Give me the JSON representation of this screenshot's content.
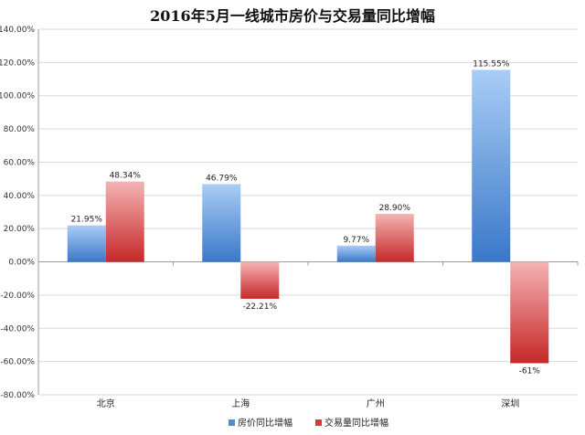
{
  "chart_data": {
    "type": "bar",
    "title": "2016年5月一线城市房价与交易量同比增幅",
    "categories": [
      "北京",
      "上海",
      "广州",
      "深圳"
    ],
    "series": [
      {
        "name": "房价同比增幅",
        "values": [
          21.95,
          46.79,
          9.77,
          115.55
        ],
        "labels": [
          "21.95%",
          "46.79%",
          "9.77%",
          "115.55%"
        ],
        "color": "#4d8fd6"
      },
      {
        "name": "交易量同比增幅",
        "values": [
          48.34,
          -22.21,
          28.9,
          -61
        ],
        "labels": [
          "48.34%",
          "-22.21%",
          "28.90%",
          "-61%"
        ],
        "color": "#d63c3c"
      }
    ],
    "ylim": [
      -80,
      140
    ],
    "yticks": [
      140,
      120,
      100,
      80,
      60,
      40,
      20,
      0,
      -20,
      -40,
      -60,
      -80
    ],
    "ytick_labels": [
      "140.00%",
      "120.00%",
      "100.00%",
      "80.00%",
      "60.00%",
      "40.00%",
      "20.00%",
      "0.00%",
      "-20.00%",
      "-40.00%",
      "-60.00%",
      "-80.00%"
    ],
    "grid": true,
    "legend_position": "bottom-right"
  }
}
